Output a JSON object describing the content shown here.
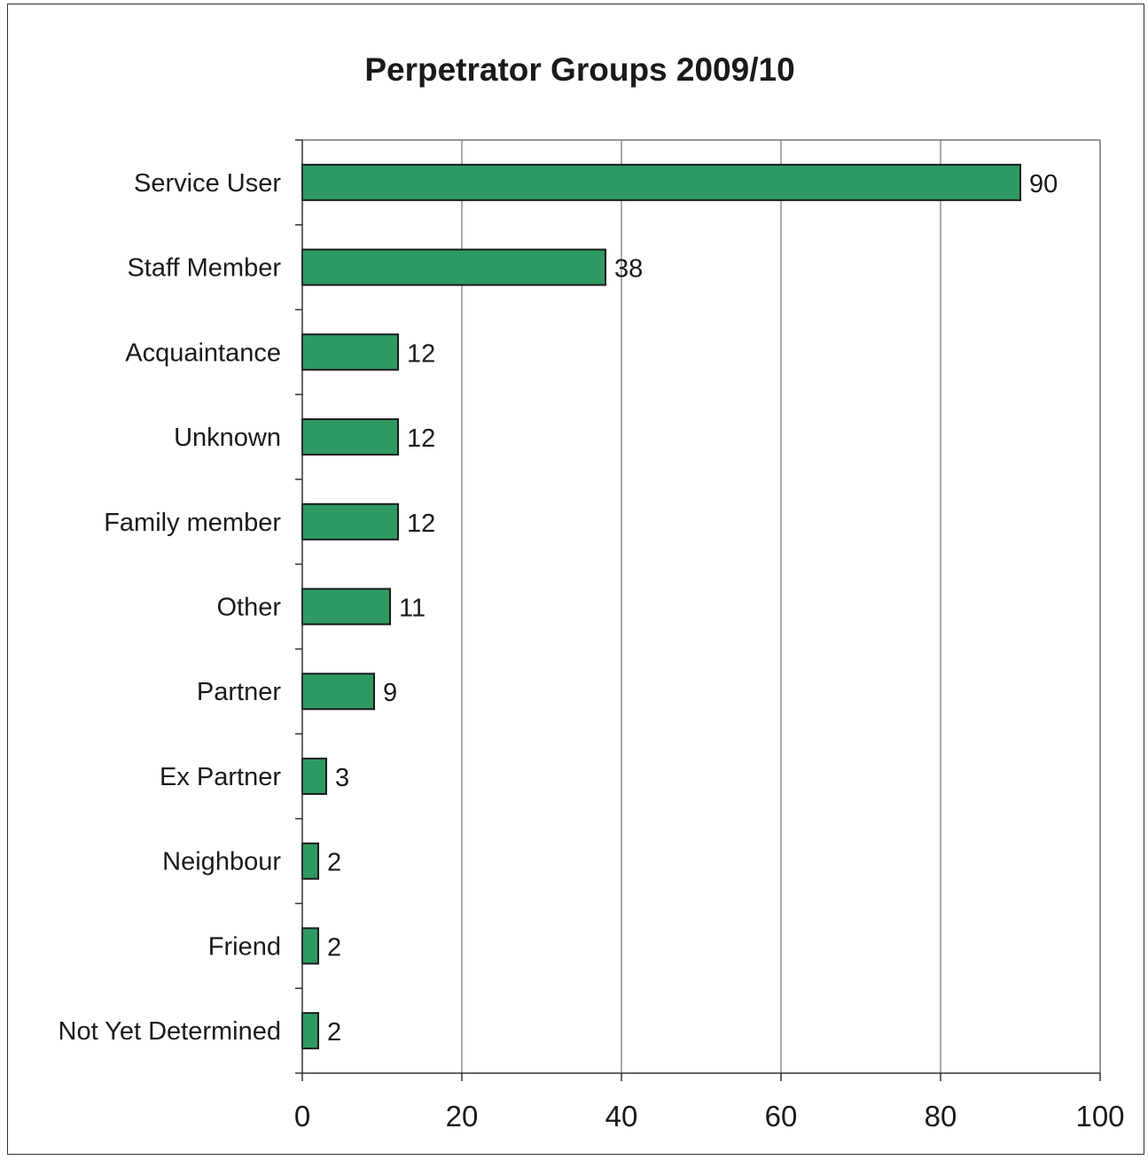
{
  "chart_data": {
    "type": "bar",
    "orientation": "horizontal",
    "title": "Perpetrator Groups 2009/10",
    "xlabel": "",
    "ylabel": "",
    "categories": [
      "Service User",
      "Staff Member",
      "Acquaintance",
      "Unknown",
      "Family member",
      "Other",
      "Partner",
      "Ex Partner",
      "Neighbour",
      "Friend",
      "Not Yet Determined"
    ],
    "values": [
      90,
      38,
      12,
      12,
      12,
      11,
      9,
      3,
      2,
      2,
      2
    ],
    "data_labels": [
      "90",
      "38",
      "12",
      "12",
      "12",
      "11",
      "9",
      "3",
      "2",
      "2",
      "2"
    ],
    "xlim": [
      0,
      100
    ],
    "x_ticks": [
      "0",
      "20",
      "40",
      "60",
      "80",
      "100"
    ],
    "grid": "vertical",
    "legend": "none",
    "bar_color": "#2e9a62",
    "bar_edge_color": "#1a1a1a",
    "grid_color": "#555555"
  }
}
